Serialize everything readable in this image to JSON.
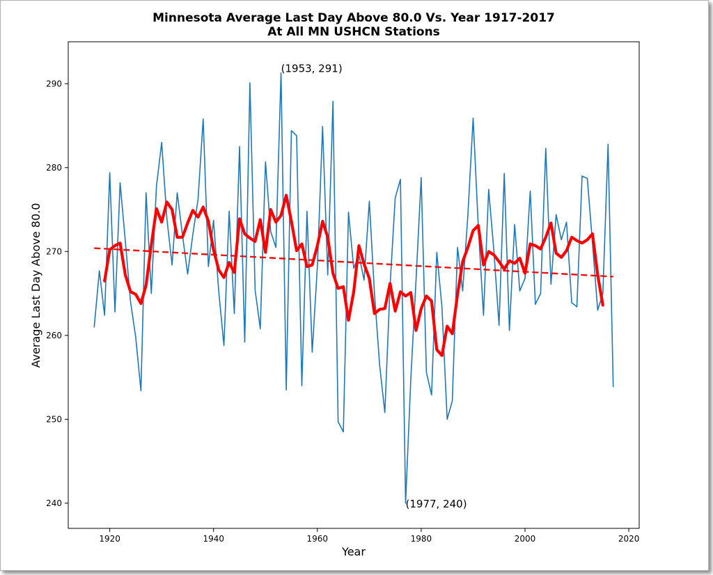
{
  "chart_data": {
    "type": "line",
    "title": "Minnesota Average Last Day Above 80.0 Vs. Year 1917-2017",
    "subtitle": "At All MN USHCN Stations",
    "xlabel": "Year",
    "ylabel": "Average Last Day Above 80.0",
    "xlim": [
      1912,
      2022
    ],
    "ylim": [
      237,
      295
    ],
    "x_ticks": [
      1920,
      1940,
      1960,
      1980,
      2000,
      2020
    ],
    "y_ticks": [
      240,
      250,
      260,
      270,
      280,
      290
    ],
    "grid": false,
    "colors": {
      "yearly": "#1f77b4",
      "smoothed": "#ff0000",
      "trend": "#ff0000"
    },
    "series": [
      {
        "style": "thin-line",
        "x": [
          1917,
          1918,
          1919,
          1920,
          1921,
          1922,
          1923,
          1924,
          1925,
          1926,
          1927,
          1928,
          1929,
          1930,
          1931,
          1932,
          1933,
          1934,
          1935,
          1936,
          1937,
          1938,
          1939,
          1940,
          1941,
          1942,
          1943,
          1944,
          1945,
          1946,
          1947,
          1948,
          1949,
          1950,
          1951,
          1952,
          1953,
          1954,
          1955,
          1956,
          1957,
          1958,
          1959,
          1960,
          1961,
          1962,
          1963,
          1964,
          1965,
          1966,
          1967,
          1968,
          1969,
          1970,
          1971,
          1972,
          1973,
          1974,
          1975,
          1976,
          1977,
          1978,
          1979,
          1980,
          1981,
          1982,
          1983,
          1984,
          1985,
          1986,
          1987,
          1988,
          1989,
          1990,
          1991,
          1992,
          1993,
          1994,
          1995,
          1996,
          1997,
          1998,
          1999,
          2000,
          2001,
          2002,
          2003,
          2004,
          2005,
          2006,
          2007,
          2008,
          2009,
          2010,
          2011,
          2012,
          2013,
          2014,
          2015,
          2016,
          2017
        ],
        "values": [
          261.0,
          267.7,
          262.4,
          279.4,
          262.8,
          278.2,
          271.2,
          264.0,
          259.8,
          253.4,
          277.0,
          265.0,
          277.8,
          283.0,
          274.0,
          268.4,
          277.0,
          272.0,
          267.3,
          272.0,
          276.2,
          285.8,
          268.2,
          273.7,
          265.2,
          258.8,
          274.8,
          262.6,
          282.5,
          259.2,
          290.1,
          265.4,
          260.8,
          280.7,
          272.4,
          270.5,
          291.3,
          253.5,
          284.4,
          283.8,
          254.0,
          274.8,
          258.0,
          268.2,
          284.9,
          267.2,
          287.9,
          249.7,
          248.5,
          274.7,
          268.0,
          269.6,
          266.6,
          276.0,
          265.0,
          256.4,
          250.8,
          265.9,
          276.4,
          278.6,
          240.0,
          254.8,
          266.6,
          278.8,
          255.6,
          252.9,
          269.9,
          263.4,
          250.0,
          252.2,
          270.5,
          265.3,
          274.4,
          285.9,
          273.0,
          262.4,
          277.4,
          270.1,
          261.2,
          279.3,
          260.6,
          273.2,
          265.3,
          266.8,
          277.2,
          263.7,
          265.0,
          282.3,
          266.1,
          274.4,
          271.4,
          273.5,
          263.9,
          263.4,
          279.0,
          278.7,
          271.0,
          263.0,
          265.0,
          282.8,
          253.9
        ]
      },
      {
        "style": "thick-smoothed",
        "x": [
          1919,
          1920,
          1921,
          1922,
          1923,
          1924,
          1925,
          1926,
          1927,
          1928,
          1929,
          1930,
          1931,
          1932,
          1933,
          1934,
          1935,
          1936,
          1937,
          1938,
          1939,
          1940,
          1941,
          1942,
          1943,
          1944,
          1945,
          1946,
          1947,
          1948,
          1949,
          1950,
          1951,
          1952,
          1953,
          1954,
          1955,
          1956,
          1957,
          1958,
          1959,
          1960,
          1961,
          1962,
          1963,
          1964,
          1965,
          1966,
          1967,
          1968,
          1969,
          1970,
          1971,
          1972,
          1973,
          1974,
          1975,
          1976,
          1977,
          1978,
          1979,
          1980,
          1981,
          1982,
          1983,
          1984,
          1985,
          1986,
          1987,
          1988,
          1989,
          1990,
          1991,
          1992,
          1993,
          1994,
          1995,
          1996,
          1997,
          1998,
          1999,
          2000,
          2001,
          2002,
          2003,
          2004,
          2005,
          2006,
          2007,
          2008,
          2009,
          2010,
          2011,
          2012,
          2013,
          2014,
          2015
        ],
        "values": [
          266.5,
          270.2,
          270.7,
          271.0,
          267.2,
          265.2,
          264.9,
          263.8,
          266.0,
          270.8,
          275.1,
          273.5,
          275.9,
          275.0,
          271.7,
          271.7,
          273.4,
          274.9,
          274.1,
          275.3,
          273.6,
          270.2,
          267.8,
          266.9,
          268.7,
          267.5,
          273.9,
          272.1,
          271.6,
          271.2,
          273.8,
          269.9,
          275.0,
          273.5,
          274.3,
          276.7,
          273.6,
          270.1,
          270.9,
          268.2,
          268.4,
          270.7,
          273.6,
          271.7,
          267.4,
          265.6,
          265.8,
          261.8,
          265.2,
          270.7,
          268.5,
          266.8,
          262.6,
          263.1,
          263.2,
          266.2,
          262.9,
          265.2,
          264.7,
          265.1,
          260.6,
          263.2,
          264.7,
          264.1,
          258.3,
          257.6,
          261.1,
          260.2,
          264.9,
          268.8,
          270.5,
          272.5,
          273.1,
          268.4,
          270.0,
          269.6,
          268.8,
          267.9,
          268.9,
          268.6,
          269.2,
          267.4,
          270.9,
          270.7,
          270.3,
          271.7,
          273.4,
          269.8,
          269.3,
          270.1,
          271.7,
          271.3,
          271.0,
          271.4,
          272.1,
          267.2,
          263.6
        ]
      },
      {
        "style": "dashed-trend",
        "x": [
          1917,
          2017
        ],
        "values": [
          270.4,
          267.0
        ]
      }
    ],
    "annotations": [
      {
        "x": 1953,
        "y": 291.3,
        "text": "(1953, 291)"
      },
      {
        "x": 1977,
        "y": 240.0,
        "text": "(1977, 240)"
      }
    ]
  }
}
